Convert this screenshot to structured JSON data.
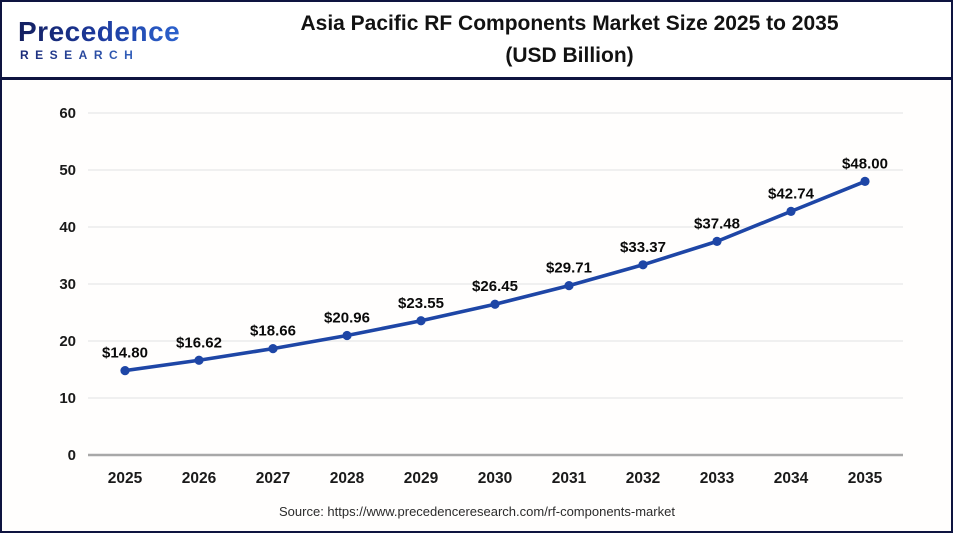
{
  "logo": {
    "line1": "Precedence",
    "line2": "RESEARCH"
  },
  "title": {
    "line1": "Asia Pacific RF Components Market Size 2025 to 2035",
    "line2": "(USD Billion)"
  },
  "source": "Source: https://www.precedenceresearch.com/rf-components-market",
  "colors": {
    "line": "#1e46a6",
    "marker": "#1e46a6",
    "grid": "#ebebeb",
    "axis": "#a8a8a8",
    "frame": "#0e1440",
    "tick_text": "#1a1a1a",
    "point_label_text": "#0a0a0a"
  },
  "chart_data": {
    "type": "line",
    "title": "Asia Pacific RF Components Market Size 2025 to 2035 (USD Billion)",
    "categories": [
      "2025",
      "2026",
      "2027",
      "2028",
      "2029",
      "2030",
      "2031",
      "2032",
      "2033",
      "2034",
      "2035"
    ],
    "values": [
      14.8,
      16.62,
      18.66,
      20.96,
      23.55,
      26.45,
      29.71,
      33.37,
      37.48,
      42.74,
      48.0
    ],
    "point_labels": [
      "$14.80",
      "$16.62",
      "$18.66",
      "$20.96",
      "$23.55",
      "$26.45",
      "$29.71",
      "$33.37",
      "$37.48",
      "$42.74",
      "$48.00"
    ],
    "xlabel": "",
    "ylabel": "",
    "ylim": [
      0,
      60
    ],
    "yticks": [
      0,
      10,
      20,
      30,
      40,
      50,
      60
    ],
    "grid": true,
    "legend": false
  }
}
